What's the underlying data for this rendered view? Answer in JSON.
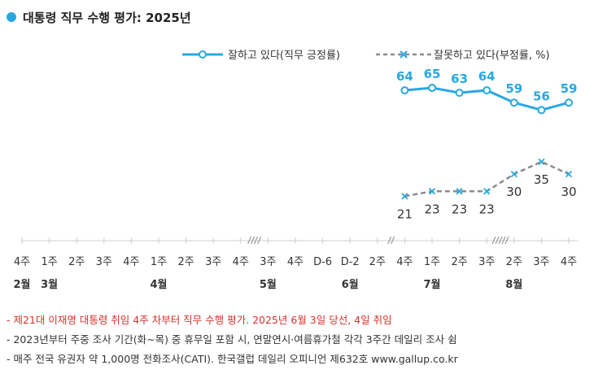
{
  "chart_data": {
    "type": "line",
    "title": "대통령 직무 수행 평가: 2025년",
    "legend": {
      "position": "top-right",
      "entries": [
        "잘하고 있다(직무 긍정률)",
        "잘못하고 있다(부정률, %)"
      ]
    },
    "colors": {
      "positive": "#29a8e0",
      "negative": "#8c8c8c",
      "title_dot": "#29a8e0"
    },
    "x_ticks": [
      "4주",
      "1주",
      "2주",
      "3주",
      "4주",
      "1주",
      "2주",
      "3주",
      "4주",
      "3주",
      "4주",
      "D-6",
      "D-2",
      "2주",
      "4주",
      "1주",
      "2주",
      "3주",
      "2주",
      "3주",
      "4주"
    ],
    "month_labels": [
      {
        "tick_index": 0,
        "label": "2월"
      },
      {
        "tick_index": 1,
        "label": "3월"
      },
      {
        "tick_index": 5,
        "label": "4월"
      },
      {
        "tick_index": 9,
        "label": "5월"
      },
      {
        "tick_index": 12,
        "label": "6월"
      },
      {
        "tick_index": 15,
        "label": "7월"
      },
      {
        "tick_index": 18,
        "label": "8월"
      }
    ],
    "axis_breaks_after_tick": [
      8,
      13,
      17
    ],
    "series": [
      {
        "name": "잘하고 있다(직무 긍정률)",
        "start_tick": 14,
        "values": [
          64,
          65,
          63,
          64,
          59,
          56,
          59
        ]
      },
      {
        "name": "잘못하고 있다(부정률, %)",
        "start_tick": 14,
        "values": [
          21,
          23,
          23,
          23,
          30,
          35,
          30
        ]
      }
    ],
    "grid": false
  },
  "notes": [
    "- 제21대 이재명 대통령 취임 4주 차부터 직무 수행 평가. 2025년 6월 3일 당선, 4일 취임",
    "- 2023년부터 주중 조사 기간(화~목) 중 휴무일 포함 시, 연말연시·여름휴가철 각각 3주간 데일리 조사 쉼",
    "- 매주 전국 유권자 약 1,000명 전화조사(CATI). 한국갤럽 데일리 오피니언 제632호 www.gallup.co.kr"
  ]
}
